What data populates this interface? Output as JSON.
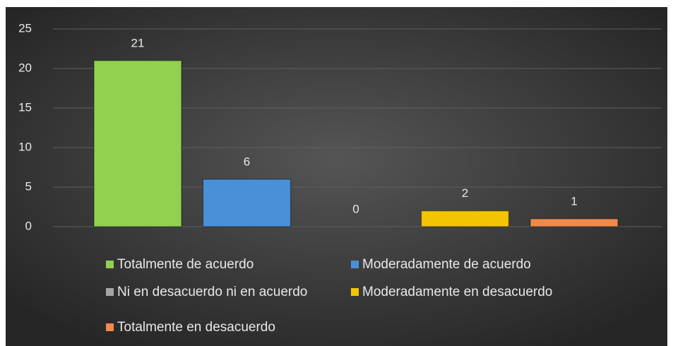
{
  "chart_data": {
    "type": "bar",
    "series": [
      {
        "name": "Totalmente de acuerdo",
        "color": "#92d050",
        "values": [
          21
        ]
      },
      {
        "name": "Moderadamente de acuerdo",
        "color": "#4a90d9",
        "values": [
          6
        ]
      },
      {
        "name": "Ni en desacuerdo ni en acuerdo",
        "color": "#a5a5a5",
        "values": [
          0
        ]
      },
      {
        "name": "Moderadamente en desacuerdo",
        "color": "#f2c500",
        "values": [
          2
        ]
      },
      {
        "name": "Totalmente en desacuerdo",
        "color": "#ed8a4c",
        "values": [
          1
        ]
      }
    ],
    "ylim": [
      0,
      25
    ],
    "yticks": [
      0,
      5,
      10,
      15,
      20,
      25
    ],
    "grid": true,
    "legend": "bottom"
  }
}
